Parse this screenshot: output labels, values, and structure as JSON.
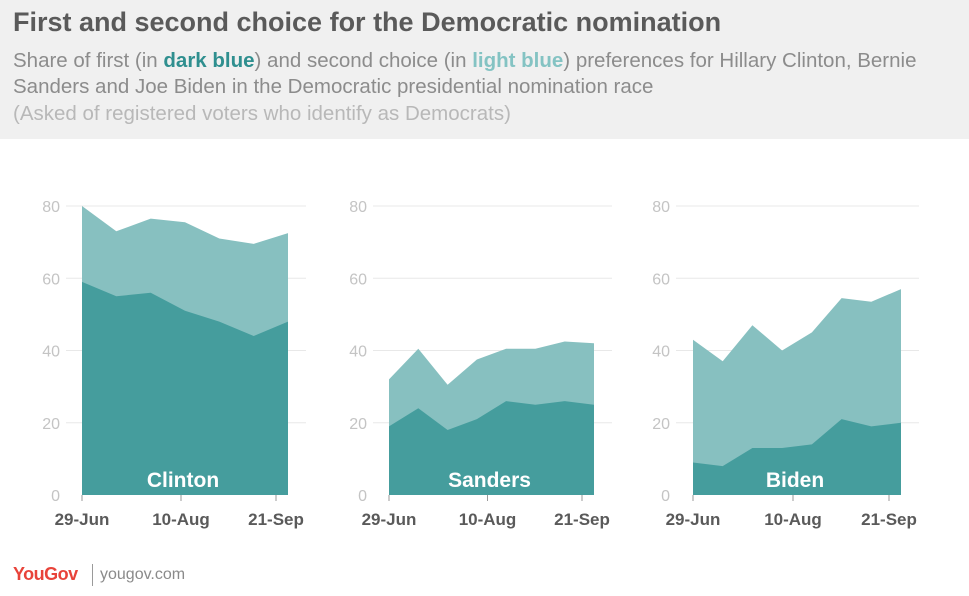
{
  "header": {
    "title": "First and second choice for the Democratic nomination",
    "subtitle_pre": "Share of first (in ",
    "subtitle_dark": "dark blue",
    "subtitle_mid": ") and second choice (in ",
    "subtitle_light": "light blue",
    "subtitle_post": ") preferences for Hillary Clinton, Bernie Sanders and Joe Biden in the Democratic presidential nomination race",
    "note": "(Asked of registered voters who identify as Democrats)"
  },
  "colors": {
    "first_choice": "#459d9d",
    "second_choice": "#87c0c0",
    "grid": "#e8e8e8",
    "axis_text": "#c4c4c4",
    "tick_text": "#5a5a5a",
    "logo": "#e8433a"
  },
  "chart_data": [
    {
      "type": "area",
      "label": "Clinton",
      "x": [
        "29-Jun",
        "6-Jul",
        "20-Jul",
        "3-Aug",
        "17-Aug",
        "31-Aug",
        "21-Sep"
      ],
      "x_ticks": [
        "29-Jun",
        "10-Aug",
        "21-Sep"
      ],
      "series": [
        {
          "name": "first choice",
          "values": [
            59,
            55,
            56,
            51,
            48,
            44,
            48
          ]
        },
        {
          "name": "second choice",
          "values": [
            21,
            18,
            20.5,
            24.5,
            23,
            25.5,
            24.5
          ]
        }
      ],
      "y_ticks": [
        0,
        20,
        40,
        60,
        80
      ],
      "ylim": [
        0,
        80
      ],
      "stacked": true,
      "grid": true
    },
    {
      "type": "area",
      "label": "Sanders",
      "x": [
        "29-Jun",
        "6-Jul",
        "20-Jul",
        "3-Aug",
        "17-Aug",
        "31-Aug",
        "14-Sep",
        "21-Sep"
      ],
      "x_ticks": [
        "29-Jun",
        "10-Aug",
        "21-Sep"
      ],
      "series": [
        {
          "name": "first choice",
          "values": [
            19,
            24,
            18,
            21,
            26,
            25,
            26,
            25
          ]
        },
        {
          "name": "second choice",
          "values": [
            13,
            16.5,
            12.5,
            16.5,
            14.5,
            15.5,
            16.5,
            17
          ]
        }
      ],
      "y_ticks": [
        0,
        20,
        40,
        60,
        80
      ],
      "ylim": [
        0,
        80
      ],
      "stacked": true,
      "grid": true
    },
    {
      "type": "area",
      "label": "Biden",
      "x": [
        "29-Jun",
        "6-Jul",
        "20-Jul",
        "3-Aug",
        "17-Aug",
        "31-Aug",
        "14-Sep",
        "21-Sep"
      ],
      "x_ticks": [
        "29-Jun",
        "10-Aug",
        "21-Sep"
      ],
      "series": [
        {
          "name": "first choice",
          "values": [
            9,
            8,
            13,
            13,
            14,
            21,
            19,
            20
          ]
        },
        {
          "name": "second choice",
          "values": [
            34,
            29,
            34,
            27,
            31,
            33.5,
            34.5,
            37
          ]
        }
      ],
      "y_ticks": [
        0,
        20,
        40,
        60,
        80
      ],
      "ylim": [
        0,
        80
      ],
      "stacked": true,
      "grid": true
    }
  ],
  "footer": {
    "logo_text": "YouGov",
    "url": "yougov.com"
  }
}
